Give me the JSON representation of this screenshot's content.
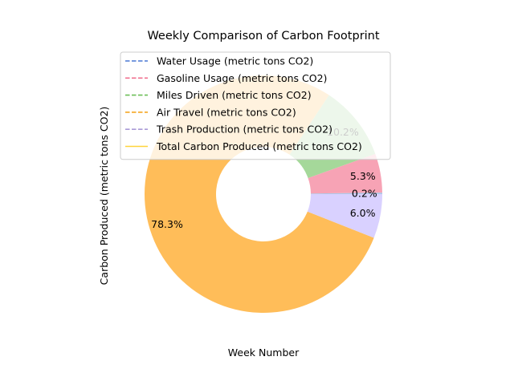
{
  "chart_data": {
    "type": "pie",
    "style": "donut",
    "title": "Weekly Comparison of Carbon Footprint",
    "xlabel": "Week Number",
    "ylabel": "Carbon Produced (metric tons CO2)",
    "legend_position": "upper-center",
    "slices": [
      {
        "label": "Water Usage (metric tons CO2)",
        "value": 0.2,
        "pct_label": "0.2%",
        "color": "#aec7e8",
        "legend_color": "#4a78d4",
        "legend_style": "dashed"
      },
      {
        "label": "Gasoline Usage (metric tons CO2)",
        "value": 5.3,
        "pct_label": "5.3%",
        "color": "#f7a3b5",
        "legend_color": "#f0728f",
        "legend_style": "dashed"
      },
      {
        "label": "Miles Driven (metric tons CO2)",
        "value": 10.2,
        "pct_label": "10.2%",
        "color": "#a5d89a",
        "legend_color": "#6cbf58",
        "legend_style": "dashed"
      },
      {
        "label": "Air Travel (metric tons CO2)",
        "value": 78.3,
        "pct_label": "78.3%",
        "color": "#ffbd59",
        "legend_color": "#f5a623",
        "legend_style": "dashed"
      },
      {
        "label": "Trash Production (metric tons CO2)",
        "value": 6.0,
        "pct_label": "6.0%",
        "color": "#d9d1ff",
        "legend_color": "#a99ad6",
        "legend_style": "dashed"
      }
    ],
    "extra_legend": [
      {
        "label": "Total Carbon Produced (metric tons CO2)",
        "legend_color": "#ffd43b",
        "legend_style": "solid"
      }
    ]
  }
}
